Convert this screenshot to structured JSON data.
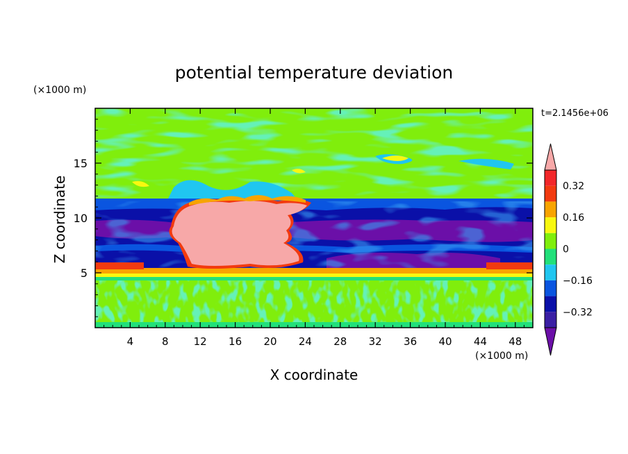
{
  "chart_data": {
    "type": "heatmap",
    "title": "potential temperature deviation",
    "xlabel": "X coordinate",
    "ylabel": "Z coordinate",
    "x_unit": "(×1000 m)",
    "y_unit": "(×1000 m)",
    "time_label": "t=2.1456e+06",
    "xlim": [
      0,
      50
    ],
    "ylim": [
      0,
      20
    ],
    "x_ticks": [
      4,
      8,
      12,
      16,
      20,
      24,
      28,
      32,
      36,
      40,
      44,
      48
    ],
    "y_ticks": [
      5,
      10,
      15
    ],
    "colorbar": {
      "levels": [
        -0.4,
        -0.32,
        -0.24,
        -0.16,
        -0.08,
        0,
        0.08,
        0.16,
        0.24,
        0.32,
        0.4
      ],
      "labels": [
        {
          "value": -0.32,
          "text": "−0.32"
        },
        {
          "value": -0.16,
          "text": "−0.16"
        },
        {
          "value": 0,
          "text": "0"
        },
        {
          "value": 0.16,
          "text": "0.16"
        },
        {
          "value": 0.32,
          "text": "0.32"
        }
      ],
      "colors": [
        "#6b0fa8",
        "#3a1fa4",
        "#0a10a8",
        "#0a55e0",
        "#20c6f0",
        "#22e07a",
        "#80ee0c",
        "#f8f810",
        "#f8a400",
        "#f23a10",
        "#f2272a",
        "#f7a8a8"
      ],
      "extend": "both"
    },
    "regions": [
      {
        "description": "upper field",
        "z_range": [
          12,
          20
        ],
        "value": 0.04
      },
      {
        "description": "cold layer",
        "z_range": [
          6,
          12
        ],
        "value": -0.28
      },
      {
        "description": "warm anomaly (cloud)",
        "x_range": [
          10,
          24
        ],
        "z_range": [
          5,
          11.5
        ],
        "value": 0.45
      },
      {
        "description": "warm band",
        "z_range": [
          4.8,
          5.6
        ],
        "value": 0.3
      },
      {
        "description": "boundary layer",
        "z_range": [
          0,
          4.5
        ],
        "value": 0.02
      }
    ]
  },
  "colors": {
    "background": "#ffffff",
    "frame": "#000000"
  }
}
